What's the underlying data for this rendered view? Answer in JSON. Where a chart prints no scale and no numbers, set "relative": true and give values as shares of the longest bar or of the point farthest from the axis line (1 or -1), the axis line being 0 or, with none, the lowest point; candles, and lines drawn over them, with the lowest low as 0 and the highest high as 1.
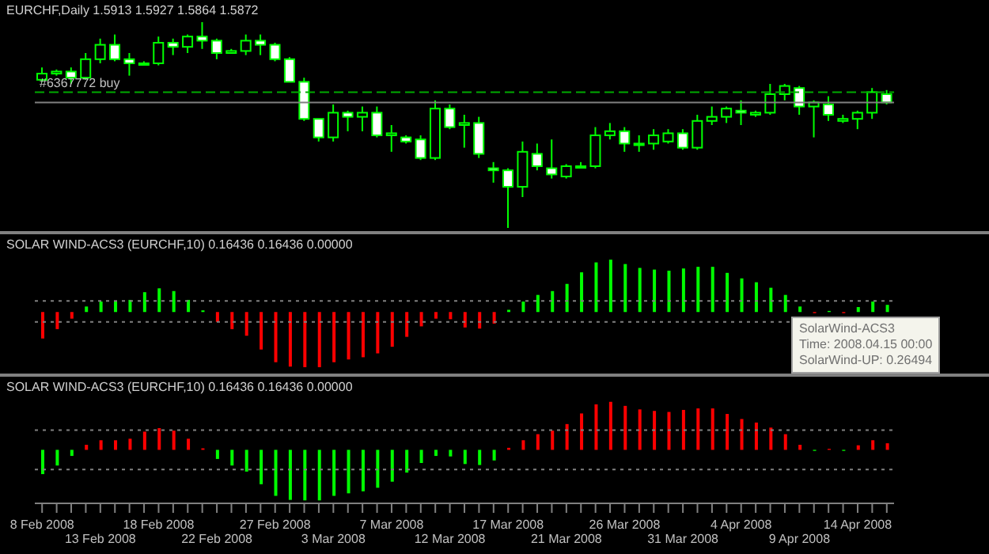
{
  "chart_data": [
    {
      "type": "candlestick",
      "title": "EURCHF,Daily 1.5913 1.5927 1.5864 1.5872",
      "relative": true,
      "tick_labels": false,
      "color": "#00ff00",
      "ohlc": [
        [
          0.72,
          0.78,
          0.71,
          0.75
        ],
        [
          0.75,
          0.77,
          0.74,
          0.76
        ],
        [
          0.76,
          0.78,
          0.7,
          0.73
        ],
        [
          0.73,
          0.85,
          0.72,
          0.82
        ],
        [
          0.82,
          0.92,
          0.8,
          0.89
        ],
        [
          0.89,
          0.94,
          0.81,
          0.82
        ],
        [
          0.82,
          0.85,
          0.74,
          0.8
        ],
        [
          0.8,
          0.81,
          0.79,
          0.8
        ],
        [
          0.8,
          0.93,
          0.79,
          0.9
        ],
        [
          0.9,
          0.92,
          0.84,
          0.88
        ],
        [
          0.88,
          0.94,
          0.85,
          0.93
        ],
        [
          0.93,
          1,
          0.87,
          0.91
        ],
        [
          0.91,
          0.92,
          0.82,
          0.85
        ],
        [
          0.85,
          0.87,
          0.85,
          0.86
        ],
        [
          0.86,
          0.94,
          0.84,
          0.91
        ],
        [
          0.91,
          0.94,
          0.84,
          0.89
        ],
        [
          0.89,
          0.9,
          0.81,
          0.82
        ],
        [
          0.82,
          0.83,
          0.71,
          0.71
        ],
        [
          0.71,
          0.73,
          0.52,
          0.53
        ],
        [
          0.53,
          0.53,
          0.42,
          0.44
        ],
        [
          0.44,
          0.6,
          0.42,
          0.56
        ],
        [
          0.56,
          0.57,
          0.47,
          0.54
        ],
        [
          0.54,
          0.59,
          0.47,
          0.56
        ],
        [
          0.56,
          0.59,
          0.44,
          0.45
        ],
        [
          0.45,
          0.5,
          0.37,
          0.46
        ],
        [
          0.44,
          0.45,
          0.41,
          0.42
        ],
        [
          0.43,
          0.45,
          0.33,
          0.34
        ],
        [
          0.34,
          0.62,
          0.33,
          0.58
        ],
        [
          0.58,
          0.6,
          0.48,
          0.49
        ],
        [
          0.5,
          0.55,
          0.39,
          0.51
        ],
        [
          0.51,
          0.54,
          0.34,
          0.36
        ],
        [
          0.29,
          0.32,
          0.22,
          0.28
        ],
        [
          0.28,
          0.29,
          0,
          0.2
        ],
        [
          0.2,
          0.42,
          0.15,
          0.37
        ],
        [
          0.36,
          0.41,
          0.28,
          0.3
        ],
        [
          0.29,
          0.43,
          0.24,
          0.26
        ],
        [
          0.25,
          0.31,
          0.24,
          0.3
        ],
        [
          0.3,
          0.32,
          0.29,
          0.3
        ],
        [
          0.3,
          0.49,
          0.29,
          0.45
        ],
        [
          0.45,
          0.51,
          0.43,
          0.47
        ],
        [
          0.47,
          0.49,
          0.37,
          0.41
        ],
        [
          0.41,
          0.45,
          0.37,
          0.41
        ],
        [
          0.41,
          0.48,
          0.38,
          0.45
        ],
        [
          0.42,
          0.48,
          0.41,
          0.46
        ],
        [
          0.46,
          0.48,
          0.38,
          0.39
        ],
        [
          0.39,
          0.55,
          0.38,
          0.52
        ],
        [
          0.52,
          0.59,
          0.5,
          0.54
        ],
        [
          0.54,
          0.59,
          0.51,
          0.58
        ],
        [
          0.57,
          0.62,
          0.5,
          0.56
        ],
        [
          0.55,
          0.57,
          0.54,
          0.56
        ],
        [
          0.56,
          0.7,
          0.55,
          0.65
        ],
        [
          0.65,
          0.7,
          0.62,
          0.69
        ],
        [
          0.68,
          0.69,
          0.55,
          0.59
        ],
        [
          0.59,
          0.62,
          0.44,
          0.61
        ],
        [
          0.6,
          0.64,
          0.52,
          0.55
        ],
        [
          0.52,
          0.55,
          0.51,
          0.53
        ],
        [
          0.53,
          0.57,
          0.48,
          0.56
        ],
        [
          0.56,
          0.68,
          0.53,
          0.66
        ],
        [
          0.65,
          0.67,
          0.6,
          0.61
        ]
      ],
      "ref_lines": [
        {
          "axis": "y",
          "value": 0.66,
          "label": "#6367772 buy",
          "color": "#00aa00",
          "line_style": "dashed"
        },
        {
          "axis": "y",
          "value": 0.61,
          "label": null,
          "color": "#808080",
          "line_style": "solid"
        }
      ]
    },
    {
      "type": "bar",
      "title": "SOLAR WIND-ACS3 (EURCHF,10) 0.16436 0.16436 0.00000",
      "relative": true,
      "tick_labels": false,
      "series": [
        {
          "color": "#00ff00",
          "values": [
            null,
            null,
            null,
            0.1,
            0.19,
            0.19,
            0.22,
            0.36,
            0.43,
            0.38,
            0.22,
            0.03,
            null,
            null,
            null,
            null,
            null,
            null,
            null,
            null,
            null,
            null,
            null,
            null,
            null,
            null,
            null,
            null,
            null,
            null,
            null,
            null,
            0.04,
            0.19,
            0.31,
            0.38,
            0.51,
            0.72,
            0.9,
            0.95,
            0.87,
            0.8,
            0.77,
            0.75,
            0.79,
            0.82,
            0.82,
            0.71,
            0.61,
            0.54,
            0.44,
            0.31,
            0.1,
            null,
            0.02,
            null,
            0.09,
            0.19,
            0.13
          ]
        },
        {
          "color": "#ff0000",
          "values": [
            -0.48,
            -0.31,
            -0.12,
            null,
            null,
            null,
            null,
            null,
            null,
            null,
            null,
            null,
            -0.18,
            -0.31,
            -0.43,
            -0.68,
            -0.91,
            -0.99,
            -1,
            -1,
            -0.91,
            -0.86,
            -0.82,
            -0.75,
            -0.63,
            -0.45,
            -0.26,
            -0.12,
            -0.13,
            -0.28,
            -0.3,
            -0.21,
            null,
            null,
            null,
            null,
            null,
            null,
            null,
            null,
            null,
            null,
            null,
            null,
            null,
            null,
            null,
            null,
            null,
            null,
            null,
            null,
            null,
            -0.02,
            null,
            -0.02,
            null,
            null,
            null
          ]
        }
      ],
      "ref_lines": [
        {
          "axis": "y",
          "value": 0.2,
          "label": null,
          "color": "#808080",
          "line_style": "dotted"
        },
        {
          "axis": "y",
          "value": -0.18,
          "label": null,
          "color": "#808080",
          "line_style": "dotted"
        }
      ],
      "annotations": [
        "SolarWind-ACS3",
        "Time: 2008.04.15 00:00",
        "SolarWind-UP: 0.26494"
      ]
    },
    {
      "type": "bar",
      "title": "SOLAR WIND-ACS3 (EURCHF,10) 0.16436 0.16436 0.00000",
      "relative": true,
      "tick_labels": "x",
      "categories": [
        "8 Feb 2008",
        null,
        null,
        null,
        "13 Feb 2008",
        null,
        null,
        null,
        "18 Feb 2008",
        null,
        null,
        null,
        "22 Feb 2008",
        null,
        null,
        null,
        "27 Feb 2008",
        null,
        null,
        null,
        "3 Mar 2008",
        null,
        null,
        null,
        "7 Mar 2008",
        null,
        null,
        null,
        "12 Mar 2008",
        null,
        null,
        null,
        "17 Mar 2008",
        null,
        null,
        null,
        "21 Mar 2008",
        null,
        null,
        null,
        "26 Mar 2008",
        null,
        null,
        null,
        "31 Mar 2008",
        null,
        null,
        null,
        "4 Apr 2008",
        null,
        null,
        null,
        "9 Apr 2008",
        null,
        null,
        null,
        "14 Apr 2008",
        null,
        null
      ],
      "series": [
        {
          "color": "#ff0000",
          "values": [
            null,
            null,
            null,
            0.1,
            0.19,
            0.19,
            0.22,
            0.36,
            0.43,
            0.38,
            0.22,
            0.03,
            null,
            null,
            null,
            null,
            null,
            null,
            null,
            null,
            null,
            null,
            null,
            null,
            null,
            null,
            null,
            null,
            null,
            null,
            null,
            null,
            0.04,
            0.19,
            0.31,
            0.38,
            0.51,
            0.72,
            0.9,
            0.95,
            0.87,
            0.8,
            0.77,
            0.75,
            0.79,
            0.82,
            0.82,
            0.71,
            0.61,
            0.54,
            0.44,
            0.31,
            0.1,
            null,
            0.02,
            null,
            0.09,
            0.19,
            0.13
          ]
        },
        {
          "color": "#00ff00",
          "values": [
            -0.48,
            -0.31,
            -0.12,
            null,
            null,
            null,
            null,
            null,
            null,
            null,
            null,
            null,
            -0.18,
            -0.31,
            -0.43,
            -0.68,
            -0.91,
            -0.99,
            -1,
            -1,
            -0.91,
            -0.86,
            -0.82,
            -0.75,
            -0.63,
            -0.45,
            -0.26,
            -0.12,
            -0.13,
            -0.28,
            -0.3,
            -0.21,
            null,
            null,
            null,
            null,
            null,
            null,
            null,
            null,
            null,
            null,
            null,
            null,
            null,
            null,
            null,
            null,
            null,
            null,
            null,
            null,
            null,
            -0.02,
            null,
            -0.02,
            null,
            null,
            null
          ]
        }
      ],
      "ref_lines": [
        {
          "axis": "y",
          "value": 0.39,
          "label": null,
          "color": "#808080",
          "line_style": "dotted"
        },
        {
          "axis": "y",
          "value": -0.39,
          "label": null,
          "color": "#808080",
          "line_style": "dotted"
        }
      ]
    }
  ]
}
